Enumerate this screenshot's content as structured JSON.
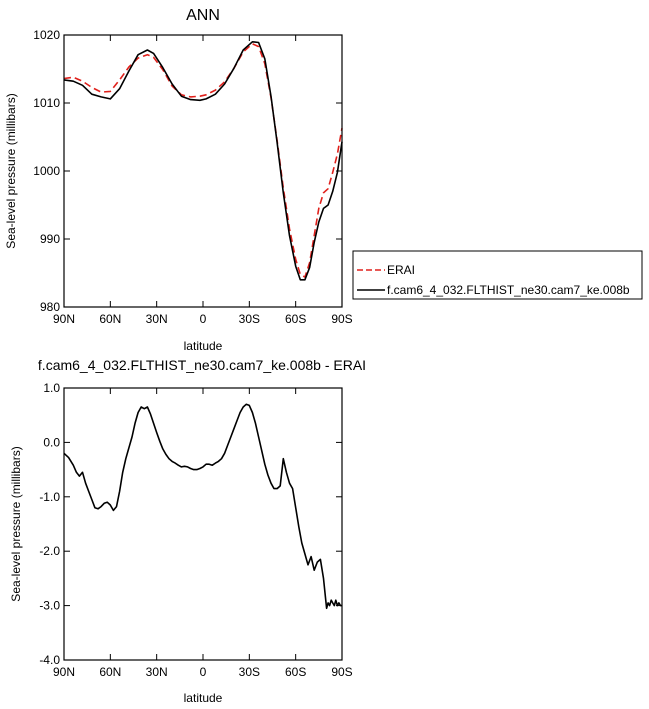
{
  "chart_data": [
    {
      "type": "line",
      "title": "ANN",
      "xlabel": "latitude",
      "ylabel": "Sea-level pressure (millibars)",
      "xlim": [
        90,
        -90
      ],
      "ylim": [
        980,
        1020
      ],
      "xticks": [
        90,
        60,
        30,
        0,
        -30,
        -60,
        -90
      ],
      "xtick_labels": [
        "90N",
        "60N",
        "30N",
        "0",
        "30S",
        "60S",
        "90S"
      ],
      "yticks": [
        980,
        990,
        1000,
        1010,
        1020
      ],
      "ytick_labels": [
        "980",
        "990",
        "1000",
        "1010",
        "1020"
      ],
      "grid": false,
      "legend_position": "right",
      "series": [
        {
          "name": "ERAI",
          "color": "#e0201b",
          "dash": "dashed",
          "x": [
            90,
            84,
            78,
            72,
            66,
            60,
            54,
            48,
            42,
            36,
            32,
            26,
            20,
            14,
            8,
            2,
            -2,
            -8,
            -14,
            -20,
            -26,
            -32,
            -36,
            -40,
            -44,
            -48,
            -52,
            -56,
            -60,
            -63,
            -66,
            -69,
            -72,
            -75,
            -78,
            -81,
            -84,
            -87,
            -90
          ],
          "y": [
            1013.6,
            1013.8,
            1013.2,
            1012.3,
            1011.6,
            1011.7,
            1013.4,
            1015.3,
            1016.6,
            1017.1,
            1016.7,
            1014.9,
            1012.5,
            1011.2,
            1010.9,
            1011.0,
            1011.2,
            1011.9,
            1013.1,
            1015.1,
            1017.5,
            1018.7,
            1018.3,
            1015.8,
            1010.8,
            1004.5,
            997.5,
            991.5,
            987.0,
            984.8,
            984.4,
            986.5,
            990.5,
            994.5,
            996.8,
            997.4,
            999.8,
            1002.5,
            1006.3
          ]
        },
        {
          "name": "f.cam6_4_032.FLTHIST_ne30.cam7_ke.008b",
          "color": "#000000",
          "dash": "solid",
          "x": [
            90,
            84,
            78,
            72,
            66,
            60,
            54,
            48,
            42,
            36,
            32,
            26,
            20,
            14,
            8,
            2,
            -2,
            -8,
            -14,
            -20,
            -26,
            -32,
            -36,
            -40,
            -44,
            -48,
            -52,
            -56,
            -60,
            -63,
            -66,
            -69,
            -72,
            -75,
            -78,
            -81,
            -84,
            -87,
            -90
          ],
          "y": [
            1013.4,
            1013.2,
            1012.6,
            1011.3,
            1010.9,
            1010.6,
            1012.1,
            1014.7,
            1017.1,
            1017.8,
            1017.3,
            1015.2,
            1012.8,
            1011.0,
            1010.5,
            1010.4,
            1010.6,
            1011.3,
            1012.8,
            1015.1,
            1017.8,
            1019.0,
            1018.9,
            1016.5,
            1011.0,
            1004.2,
            996.8,
            990.5,
            986.0,
            984.0,
            984.0,
            985.8,
            989.5,
            992.5,
            994.5,
            995.0,
            997.0,
            999.8,
            1004.3
          ]
        }
      ]
    },
    {
      "type": "line",
      "title": "f.cam6_4_032.FLTHIST_ne30.cam7_ke.008b - ERAI",
      "xlabel": "latitude",
      "ylabel": "Sea-level pressure (millibars)",
      "xlim": [
        90,
        -90
      ],
      "ylim": [
        -4.0,
        1.0
      ],
      "xticks": [
        90,
        60,
        30,
        0,
        -30,
        -60,
        -90
      ],
      "xtick_labels": [
        "90N",
        "60N",
        "30N",
        "0",
        "30S",
        "60S",
        "90S"
      ],
      "yticks": [
        -4.0,
        -3.0,
        -2.0,
        -1.0,
        0.0,
        1.0
      ],
      "ytick_labels": [
        "-4.0",
        "-3.0",
        "-2.0",
        "-1.0",
        "0.0",
        "1.0"
      ],
      "grid": false,
      "series": [
        {
          "color": "#000000",
          "dash": "solid",
          "x": [
            90,
            87,
            84,
            82,
            80,
            78,
            76,
            74,
            72,
            70,
            68,
            66,
            64,
            62,
            60,
            58,
            56,
            54,
            52,
            50,
            48,
            46,
            44,
            42,
            40,
            38,
            36,
            34,
            32,
            30,
            28,
            26,
            24,
            22,
            20,
            18,
            16,
            14,
            12,
            10,
            8,
            6,
            4,
            2,
            0,
            -2,
            -4,
            -6,
            -8,
            -10,
            -12,
            -14,
            -16,
            -18,
            -20,
            -22,
            -24,
            -26,
            -28,
            -30,
            -32,
            -34,
            -36,
            -38,
            -40,
            -42,
            -44,
            -46,
            -48,
            -50,
            -52,
            -54,
            -56,
            -58,
            -60,
            -62,
            -64,
            -66,
            -68,
            -70,
            -72,
            -74,
            -76,
            -78,
            -80,
            -81,
            -82,
            -83,
            -84,
            -85,
            -86,
            -87,
            -88,
            -89,
            -90
          ],
          "y": [
            -0.2,
            -0.28,
            -0.42,
            -0.55,
            -0.62,
            -0.55,
            -0.75,
            -0.9,
            -1.05,
            -1.2,
            -1.22,
            -1.18,
            -1.12,
            -1.1,
            -1.15,
            -1.25,
            -1.18,
            -0.9,
            -0.55,
            -0.3,
            -0.1,
            0.1,
            0.35,
            0.55,
            0.65,
            0.62,
            0.65,
            0.52,
            0.35,
            0.18,
            0.02,
            -0.12,
            -0.22,
            -0.3,
            -0.35,
            -0.38,
            -0.42,
            -0.45,
            -0.44,
            -0.45,
            -0.48,
            -0.5,
            -0.5,
            -0.48,
            -0.45,
            -0.4,
            -0.4,
            -0.42,
            -0.38,
            -0.35,
            -0.3,
            -0.2,
            -0.05,
            0.1,
            0.25,
            0.4,
            0.55,
            0.65,
            0.7,
            0.68,
            0.55,
            0.35,
            0.1,
            -0.15,
            -0.4,
            -0.6,
            -0.75,
            -0.85,
            -0.85,
            -0.8,
            -0.3,
            -0.55,
            -0.75,
            -0.85,
            -1.2,
            -1.55,
            -1.85,
            -2.05,
            -2.25,
            -2.1,
            -2.35,
            -2.2,
            -2.15,
            -2.5,
            -3.05,
            -2.95,
            -3.0,
            -2.9,
            -2.95,
            -3.0,
            -2.9,
            -3.0,
            -2.95,
            -3.0,
            -3.0
          ]
        }
      ]
    }
  ]
}
